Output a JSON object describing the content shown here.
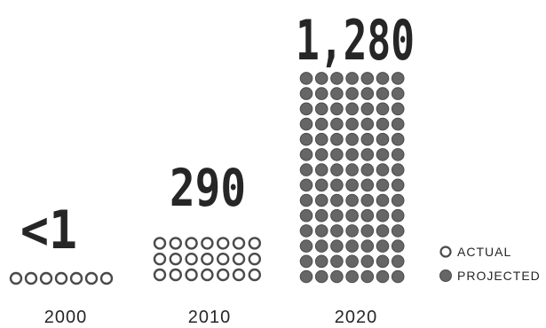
{
  "chart_data": {
    "type": "pictograph",
    "categories": [
      "2000",
      "2010",
      "2020"
    ],
    "value_labels": [
      "<1",
      "290",
      "1,280"
    ],
    "values": [
      1,
      290,
      1280
    ],
    "icon_counts": [
      7,
      21,
      98
    ],
    "icon_status": [
      "actual",
      "actual",
      "projected"
    ],
    "legend": [
      {
        "key": "actual",
        "label": "ACTUAL",
        "fill": "#ffffff",
        "stroke": "#4a4a4a"
      },
      {
        "key": "projected",
        "label": "PROJECTED",
        "fill": "#666666",
        "stroke": "#4a4a4a"
      }
    ],
    "legend_position": "right",
    "grid": false
  },
  "colors": {
    "text": "#262626",
    "actual_fill": "#ffffff",
    "projected_fill": "#666666",
    "stroke": "#4a4a4a"
  }
}
